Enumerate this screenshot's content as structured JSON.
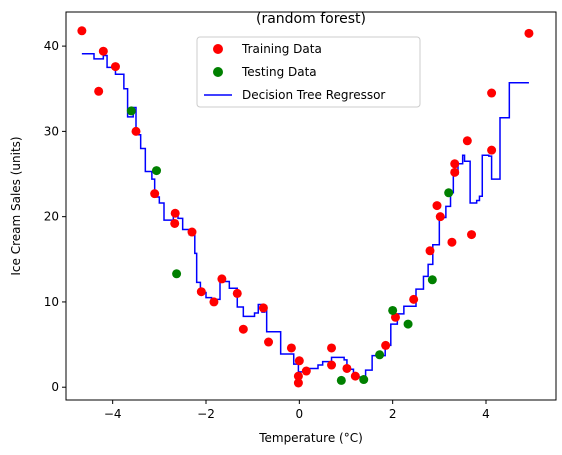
{
  "chart_data": {
    "type": "scatter",
    "title": "(random forest)",
    "xlabel": "Temperature (°C)",
    "ylabel": "Ice Cream Sales (units)",
    "xlim": [
      -5.0,
      5.5
    ],
    "ylim": [
      -1.5,
      44.0
    ],
    "xticks": [
      -4,
      -2,
      0,
      2,
      4
    ],
    "yticks": [
      0,
      10,
      20,
      30,
      40
    ],
    "grid": false,
    "legend_position": "top-center",
    "series": [
      {
        "name": "Training Data",
        "kind": "scatter",
        "color": "#ff0000",
        "points": [
          [
            -4.66,
            41.8
          ],
          [
            -4.3,
            34.7
          ],
          [
            -4.2,
            39.4
          ],
          [
            -3.94,
            37.6
          ],
          [
            -3.5,
            30.0
          ],
          [
            -3.1,
            22.7
          ],
          [
            -2.66,
            20.4
          ],
          [
            -2.67,
            19.2
          ],
          [
            -2.3,
            18.2
          ],
          [
            -2.1,
            11.2
          ],
          [
            -1.83,
            10.0
          ],
          [
            -1.66,
            12.7
          ],
          [
            -1.33,
            11.0
          ],
          [
            -1.2,
            6.8
          ],
          [
            -0.77,
            9.3
          ],
          [
            -0.66,
            5.3
          ],
          [
            -0.17,
            4.6
          ],
          [
            -0.02,
            1.3
          ],
          [
            -0.02,
            0.5
          ],
          [
            0.0,
            3.1
          ],
          [
            0.15,
            1.9
          ],
          [
            0.69,
            4.6
          ],
          [
            0.69,
            2.6
          ],
          [
            1.02,
            2.2
          ],
          [
            1.2,
            1.3
          ],
          [
            1.85,
            4.9
          ],
          [
            2.06,
            8.2
          ],
          [
            2.45,
            10.3
          ],
          [
            2.8,
            16.0
          ],
          [
            2.95,
            21.3
          ],
          [
            3.02,
            20.0
          ],
          [
            3.27,
            17.0
          ],
          [
            3.33,
            25.2
          ],
          [
            3.33,
            26.2
          ],
          [
            3.6,
            28.9
          ],
          [
            3.69,
            17.9
          ],
          [
            4.12,
            34.5
          ],
          [
            4.12,
            27.8
          ],
          [
            4.92,
            41.5
          ]
        ]
      },
      {
        "name": "Testing Data",
        "kind": "scatter",
        "color": "#008000",
        "points": [
          [
            -3.6,
            32.4
          ],
          [
            -3.06,
            25.4
          ],
          [
            -2.63,
            13.3
          ],
          [
            0.9,
            0.8
          ],
          [
            1.38,
            0.9
          ],
          [
            1.72,
            3.8
          ],
          [
            2.0,
            9.0
          ],
          [
            2.33,
            7.4
          ],
          [
            2.85,
            12.6
          ],
          [
            3.2,
            22.8
          ]
        ]
      },
      {
        "name": "Decision Tree Regressor",
        "kind": "step-line",
        "color": "#0000ff",
        "points": [
          [
            -4.66,
            39.1
          ],
          [
            -4.4,
            39.1
          ],
          [
            -4.4,
            38.5
          ],
          [
            -4.2,
            38.5
          ],
          [
            -4.2,
            38.9
          ],
          [
            -4.12,
            38.9
          ],
          [
            -4.12,
            37.5
          ],
          [
            -3.94,
            37.5
          ],
          [
            -3.94,
            36.7
          ],
          [
            -3.76,
            36.7
          ],
          [
            -3.76,
            35.0
          ],
          [
            -3.68,
            35.0
          ],
          [
            -3.68,
            31.7
          ],
          [
            -3.56,
            31.7
          ],
          [
            -3.56,
            32.8
          ],
          [
            -3.5,
            32.8
          ],
          [
            -3.5,
            29.6
          ],
          [
            -3.4,
            29.6
          ],
          [
            -3.4,
            28.0
          ],
          [
            -3.3,
            28.0
          ],
          [
            -3.3,
            25.3
          ],
          [
            -3.16,
            25.3
          ],
          [
            -3.16,
            24.4
          ],
          [
            -3.1,
            24.4
          ],
          [
            -3.1,
            22.3
          ],
          [
            -3.0,
            22.3
          ],
          [
            -3.0,
            21.6
          ],
          [
            -2.9,
            21.6
          ],
          [
            -2.9,
            19.6
          ],
          [
            -2.7,
            19.6
          ],
          [
            -2.7,
            20.4
          ],
          [
            -2.6,
            20.4
          ],
          [
            -2.6,
            19.8
          ],
          [
            -2.5,
            19.8
          ],
          [
            -2.5,
            18.5
          ],
          [
            -2.36,
            18.5
          ],
          [
            -2.36,
            17.9
          ],
          [
            -2.24,
            17.9
          ],
          [
            -2.24,
            15.7
          ],
          [
            -2.2,
            15.7
          ],
          [
            -2.2,
            12.3
          ],
          [
            -2.12,
            12.3
          ],
          [
            -2.12,
            11.1
          ],
          [
            -2.0,
            11.1
          ],
          [
            -2.0,
            10.5
          ],
          [
            -1.88,
            10.5
          ],
          [
            -1.88,
            10.3
          ],
          [
            -1.7,
            10.3
          ],
          [
            -1.7,
            12.4
          ],
          [
            -1.5,
            12.4
          ],
          [
            -1.5,
            11.6
          ],
          [
            -1.33,
            11.6
          ],
          [
            -1.33,
            9.4
          ],
          [
            -1.2,
            9.4
          ],
          [
            -1.2,
            8.3
          ],
          [
            -0.96,
            8.3
          ],
          [
            -0.96,
            8.7
          ],
          [
            -0.88,
            8.7
          ],
          [
            -0.88,
            9.7
          ],
          [
            -0.8,
            9.7
          ],
          [
            -0.8,
            8.8
          ],
          [
            -0.74,
            8.8
          ],
          [
            -0.74,
            9.5
          ],
          [
            -0.7,
            9.5
          ],
          [
            -0.7,
            6.5
          ],
          [
            -0.4,
            6.5
          ],
          [
            -0.4,
            3.9
          ],
          [
            -0.12,
            3.9
          ],
          [
            -0.12,
            2.7
          ],
          [
            -0.02,
            2.7
          ],
          [
            -0.02,
            1.8
          ],
          [
            0.1,
            1.8
          ],
          [
            0.1,
            2.2
          ],
          [
            0.4,
            2.2
          ],
          [
            0.4,
            2.6
          ],
          [
            0.5,
            2.6
          ],
          [
            0.5,
            3.0
          ],
          [
            0.69,
            3.0
          ],
          [
            0.69,
            3.5
          ],
          [
            0.96,
            3.5
          ],
          [
            0.96,
            3.2
          ],
          [
            1.02,
            3.2
          ],
          [
            1.02,
            2.1
          ],
          [
            1.16,
            2.1
          ],
          [
            1.16,
            1.2
          ],
          [
            1.42,
            1.2
          ],
          [
            1.42,
            2.0
          ],
          [
            1.56,
            2.0
          ],
          [
            1.56,
            3.7
          ],
          [
            1.84,
            3.7
          ],
          [
            1.84,
            4.9
          ],
          [
            1.96,
            4.9
          ],
          [
            1.96,
            7.4
          ],
          [
            2.1,
            7.4
          ],
          [
            2.1,
            8.6
          ],
          [
            2.24,
            8.6
          ],
          [
            2.24,
            9.5
          ],
          [
            2.5,
            9.5
          ],
          [
            2.5,
            11.5
          ],
          [
            2.66,
            11.5
          ],
          [
            2.66,
            13.0
          ],
          [
            2.76,
            13.0
          ],
          [
            2.76,
            14.4
          ],
          [
            2.86,
            14.4
          ],
          [
            2.86,
            16.7
          ],
          [
            3.0,
            16.7
          ],
          [
            3.0,
            19.9
          ],
          [
            3.14,
            19.9
          ],
          [
            3.14,
            21.2
          ],
          [
            3.24,
            21.2
          ],
          [
            3.24,
            22.8
          ],
          [
            3.3,
            22.8
          ],
          [
            3.3,
            25.0
          ],
          [
            3.4,
            25.0
          ],
          [
            3.4,
            26.2
          ],
          [
            3.5,
            26.2
          ],
          [
            3.5,
            27.2
          ],
          [
            3.54,
            27.2
          ],
          [
            3.54,
            26.5
          ],
          [
            3.66,
            26.5
          ],
          [
            3.66,
            21.6
          ],
          [
            3.8,
            21.6
          ],
          [
            3.8,
            21.9
          ],
          [
            3.86,
            21.9
          ],
          [
            3.86,
            22.4
          ],
          [
            3.92,
            22.4
          ],
          [
            3.92,
            27.2
          ],
          [
            4.06,
            27.2
          ],
          [
            4.06,
            27.1
          ],
          [
            4.12,
            27.1
          ],
          [
            4.12,
            24.4
          ],
          [
            4.3,
            24.4
          ],
          [
            4.3,
            31.6
          ],
          [
            4.5,
            31.6
          ],
          [
            4.5,
            35.7
          ],
          [
            4.92,
            35.7
          ]
        ]
      }
    ]
  }
}
